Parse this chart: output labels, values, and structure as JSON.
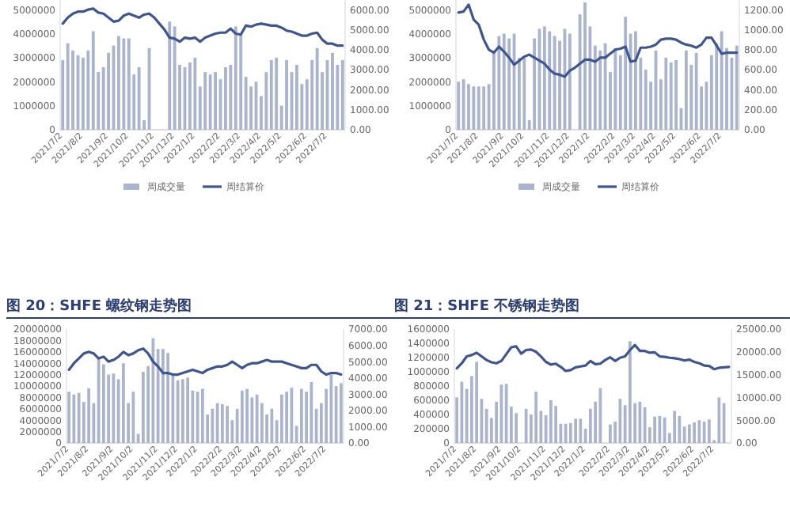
{
  "chart_data": [
    {
      "type": "bar",
      "categories": [
        "2021/7/2",
        null,
        null,
        null,
        "2021/8/2",
        null,
        null,
        null,
        null,
        "2021/9/2",
        null,
        null,
        null,
        "2021/10/2",
        null,
        null,
        null,
        null,
        "2021/11/2",
        null,
        null,
        null,
        "2021/12/2",
        null,
        null,
        null,
        "2022/1/2",
        null,
        null,
        null,
        null,
        "2022/2/2",
        null,
        null,
        null,
        "2022/3/2",
        null,
        null,
        null,
        "2022/4/2",
        null,
        null,
        null,
        "2022/5/2",
        null,
        null,
        null,
        null,
        "2022/6/2",
        null,
        null,
        null,
        "2022/7/2",
        null,
        null,
        null
      ],
      "ylim": [
        0,
        5400000
      ],
      "yticks": [
        0,
        1000000,
        2000000,
        3000000,
        4000000,
        5000000
      ],
      "y2lim": [
        0,
        6480
      ],
      "y2ticks": [
        {
          "value": 0,
          "label": "0.00"
        },
        {
          "value": 1000,
          "label": "1000.00"
        },
        {
          "value": 2000,
          "label": "2000.00"
        },
        {
          "value": 3000,
          "label": "3000.00"
        },
        {
          "value": 4000,
          "label": "4000.00"
        },
        {
          "value": 5000,
          "label": "5000.00"
        },
        {
          "value": 6000,
          "label": "6000.00"
        }
      ],
      "legend": "bottom",
      "series": [
        {
          "name": "周成交量",
          "color": "#aab4cc",
          "values": [
            2900000,
            3600000,
            3300000,
            3100000,
            3000000,
            3300000,
            4100000,
            2400000,
            2600000,
            3200000,
            3500000,
            3900000,
            3800000,
            3800000,
            2300000,
            2600000,
            400000,
            3400000,
            null,
            null,
            null,
            4500000,
            4300000,
            2700000,
            2600000,
            2800000,
            3000000,
            1800000,
            2400000,
            2300000,
            2400000,
            2100000,
            2600000,
            2700000,
            4300000,
            4000000,
            2200000,
            1800000,
            2000000,
            1400000,
            2400000,
            2900000,
            3000000,
            1000000,
            2900000,
            2400000,
            2700000,
            1900000,
            2100000,
            2900000,
            3400000,
            2400000,
            2900000,
            3200000,
            2700000,
            2900000
          ]
        },
        {
          "name": "周结算价",
          "type": "line",
          "axis": "y2",
          "color": "#3f5590",
          "values": [
            5300,
            5600,
            5800,
            5900,
            5900,
            6000,
            6050,
            5850,
            5800,
            5600,
            5400,
            5450,
            5700,
            5800,
            5700,
            5600,
            5750,
            5800,
            5600,
            5300,
            5000,
            4600,
            4550,
            4400,
            4600,
            4550,
            4600,
            4400,
            4600,
            4700,
            4800,
            4850,
            4850,
            5050,
            4800,
            4750,
            5200,
            5150,
            5250,
            5300,
            5250,
            5200,
            5200,
            5100,
            4950,
            4900,
            4800,
            4700,
            4700,
            4800,
            4850,
            4500,
            4300,
            4300,
            4200,
            4200
          ]
        }
      ]
    },
    {
      "type": "bar",
      "categories": [
        "2021/7/2",
        null,
        null,
        null,
        "2021/8/2",
        null,
        null,
        null,
        null,
        "2021/9/2",
        null,
        null,
        null,
        "2021/10/2",
        null,
        null,
        null,
        null,
        "2021/11/2",
        null,
        null,
        null,
        "2021/12/2",
        null,
        null,
        null,
        "2022/1/2",
        null,
        null,
        null,
        null,
        "2022/2/2",
        null,
        null,
        null,
        "2022/3/2",
        null,
        null,
        null,
        "2022/4/2",
        null,
        null,
        null,
        "2022/5/2",
        null,
        null,
        null,
        null,
        "2022/6/2",
        null,
        null,
        null,
        "2022/7/2",
        null,
        null,
        null
      ],
      "ylim": [
        0,
        5400000
      ],
      "yticks": [
        0,
        1000000,
        2000000,
        3000000,
        4000000,
        5000000
      ],
      "y2lim": [
        0,
        1296
      ],
      "y2ticks": [
        {
          "value": 0,
          "label": "0.00"
        },
        {
          "value": 200,
          "label": "200.00"
        },
        {
          "value": 400,
          "label": "400.00"
        },
        {
          "value": 600,
          "label": "600.00"
        },
        {
          "value": 800,
          "label": "800.00"
        },
        {
          "value": 1000,
          "label": "1000.00"
        },
        {
          "value": 1200,
          "label": "1200.00"
        }
      ],
      "legend": "bottom",
      "series": [
        {
          "name": "周成交量",
          "color": "#aab4cc",
          "values": [
            2000000,
            2100000,
            1900000,
            1800000,
            1800000,
            1800000,
            1900000,
            3300000,
            3900000,
            4000000,
            3800000,
            4000000,
            3000000,
            3000000,
            400000,
            3800000,
            4200000,
            4300000,
            4100000,
            3900000,
            3700000,
            4200000,
            4000000,
            null,
            4800000,
            5300000,
            4300000,
            3500000,
            3300000,
            3600000,
            2400000,
            3400000,
            3100000,
            4700000,
            4000000,
            4100000,
            3000000,
            2500000,
            2000000,
            3300000,
            2100000,
            3000000,
            2800000,
            2900000,
            900000,
            3300000,
            2700000,
            3200000,
            1800000,
            2000000,
            3100000,
            3600000,
            4100000,
            3400000,
            3000000,
            3500000
          ]
        },
        {
          "name": "周结算价",
          "type": "line",
          "axis": "y2",
          "color": "#3f5590",
          "values": [
            1170,
            1180,
            1250,
            1100,
            1050,
            900,
            800,
            770,
            830,
            780,
            720,
            650,
            690,
            730,
            750,
            720,
            690,
            660,
            600,
            560,
            550,
            530,
            590,
            620,
            660,
            700,
            700,
            680,
            720,
            720,
            760,
            800,
            810,
            830,
            680,
            690,
            820,
            820,
            830,
            850,
            900,
            910,
            910,
            900,
            870,
            850,
            840,
            820,
            850,
            920,
            920,
            840,
            760,
            770,
            770,
            770
          ]
        }
      ]
    },
    {
      "type": "bar",
      "title": "图 20：SHFE 螺纹钢走势图",
      "categories": [
        "2021/7/2",
        null,
        null,
        null,
        "2021/8/2",
        null,
        null,
        null,
        null,
        "2021/9/2",
        null,
        null,
        null,
        "2021/10/2",
        null,
        null,
        null,
        null,
        "2021/11/2",
        null,
        null,
        null,
        "2021/12/2",
        null,
        null,
        null,
        "2022/1/2",
        null,
        null,
        null,
        null,
        "2022/2/2",
        null,
        null,
        null,
        "2022/3/2",
        null,
        null,
        null,
        "2022/4/2",
        null,
        null,
        null,
        "2022/5/2",
        null,
        null,
        null,
        null,
        "2022/6/2",
        null,
        null,
        null,
        "2022/7/2",
        null,
        null,
        null
      ],
      "ylim": [
        0,
        20000000
      ],
      "yticks": [
        0,
        2000000,
        4000000,
        6000000,
        8000000,
        10000000,
        12000000,
        14000000,
        16000000,
        18000000,
        20000000
      ],
      "y2lim": [
        0,
        7000
      ],
      "y2ticks": [
        {
          "value": 0,
          "label": "0.00"
        },
        {
          "value": 1000,
          "label": "1000.00"
        },
        {
          "value": 2000,
          "label": "2000.00"
        },
        {
          "value": 3000,
          "label": "3000.00"
        },
        {
          "value": 4000,
          "label": "4000.00"
        },
        {
          "value": 5000,
          "label": "5000.00"
        },
        {
          "value": 6000,
          "label": "6000.00"
        },
        {
          "value": 7000,
          "label": "7000.00"
        }
      ],
      "series": [
        {
          "color": "#aab4cc",
          "values": [
            9000000,
            8500000,
            8800000,
            7200000,
            9600000,
            7000000,
            15000000,
            13800000,
            12000000,
            12200000,
            11200000,
            14000000,
            7000000,
            9000000,
            1600000,
            12500000,
            13500000,
            18400000,
            16500000,
            16500000,
            15800000,
            12000000,
            11000000,
            11200000,
            11500000,
            9200000,
            9000000,
            9500000,
            5000000,
            6000000,
            7000000,
            6800000,
            6500000,
            4000000,
            6000000,
            9200000,
            9500000,
            8000000,
            8500000,
            7000000,
            5000000,
            6000000,
            4000000,
            8500000,
            9000000,
            9700000,
            3000000,
            9500000,
            9000000,
            10700000,
            6000000,
            7000000,
            9500000,
            12000000,
            10000000,
            10500000
          ]
        },
        {
          "type": "line",
          "axis": "y2",
          "color": "#3f5590",
          "values": [
            4500,
            4900,
            5200,
            5500,
            5600,
            5500,
            5200,
            5300,
            5000,
            5100,
            5300,
            5600,
            5400,
            5500,
            5700,
            5800,
            5500,
            5000,
            4700,
            4300,
            4300,
            4200,
            4200,
            4300,
            4400,
            4500,
            4400,
            4300,
            4500,
            4600,
            4700,
            4700,
            4800,
            5000,
            4800,
            4600,
            4800,
            4900,
            4900,
            5000,
            5100,
            5000,
            5000,
            5000,
            4900,
            4800,
            4700,
            4600,
            4600,
            4800,
            4800,
            4400,
            4200,
            4300,
            4300,
            4200
          ]
        }
      ]
    },
    {
      "type": "bar",
      "title": "图 21：SHFE 不锈钢走势图",
      "categories": [
        "2021/7/2",
        null,
        null,
        null,
        "2021/8/2",
        null,
        null,
        null,
        null,
        "2021/9/2",
        null,
        null,
        null,
        "2021/10/2",
        null,
        null,
        null,
        null,
        "2021/11/2",
        null,
        null,
        null,
        "2021/12/2",
        null,
        null,
        null,
        "2022/1/2",
        null,
        null,
        null,
        null,
        "2022/2/2",
        null,
        null,
        null,
        "2022/3/2",
        null,
        null,
        null,
        "2022/4/2",
        null,
        null,
        null,
        "2022/5/2",
        null,
        null,
        null,
        null,
        "2022/6/2",
        null,
        null,
        null,
        "2022/7/2",
        null,
        null,
        null
      ],
      "ylim": [
        0,
        1600000
      ],
      "yticks": [
        0,
        200000,
        400000,
        600000,
        800000,
        1000000,
        1200000,
        1400000,
        1600000
      ],
      "y2lim": [
        0,
        25000
      ],
      "y2ticks": [
        {
          "value": 0,
          "label": "0.00"
        },
        {
          "value": 5000,
          "label": "5000.00"
        },
        {
          "value": 10000,
          "label": "10000.00"
        },
        {
          "value": 15000,
          "label": "15000.00"
        },
        {
          "value": 20000,
          "label": "20000.00"
        },
        {
          "value": 25000,
          "label": "25000.00"
        }
      ],
      "series": [
        {
          "color": "#aab4cc",
          "values": [
            640000,
            860000,
            760000,
            940000,
            1140000,
            620000,
            480000,
            350000,
            580000,
            820000,
            830000,
            510000,
            420000,
            null,
            480000,
            400000,
            720000,
            450000,
            390000,
            600000,
            520000,
            270000,
            270000,
            280000,
            340000,
            340000,
            200000,
            480000,
            580000,
            770000,
            null,
            260000,
            300000,
            620000,
            530000,
            1430000,
            560000,
            580000,
            500000,
            220000,
            370000,
            380000,
            360000,
            140000,
            450000,
            380000,
            230000,
            260000,
            290000,
            320000,
            300000,
            330000,
            40000,
            640000,
            560000,
            null
          ]
        },
        {
          "type": "line",
          "axis": "y2",
          "color": "#3f5590",
          "values": [
            16400,
            17500,
            19000,
            19300,
            19800,
            19000,
            18200,
            17700,
            17500,
            18000,
            19500,
            21000,
            21200,
            19600,
            20400,
            20500,
            20000,
            19000,
            17800,
            17200,
            17400,
            16700,
            15800,
            16000,
            16600,
            16800,
            17000,
            18000,
            17300,
            17400,
            18200,
            18800,
            18000,
            18700,
            19000,
            20400,
            21500,
            20200,
            20200,
            19800,
            19900,
            19000,
            18900,
            18700,
            18600,
            18400,
            18100,
            18300,
            17800,
            17500,
            17000,
            16900,
            16200,
            16500,
            16600,
            16700
          ]
        }
      ]
    }
  ]
}
